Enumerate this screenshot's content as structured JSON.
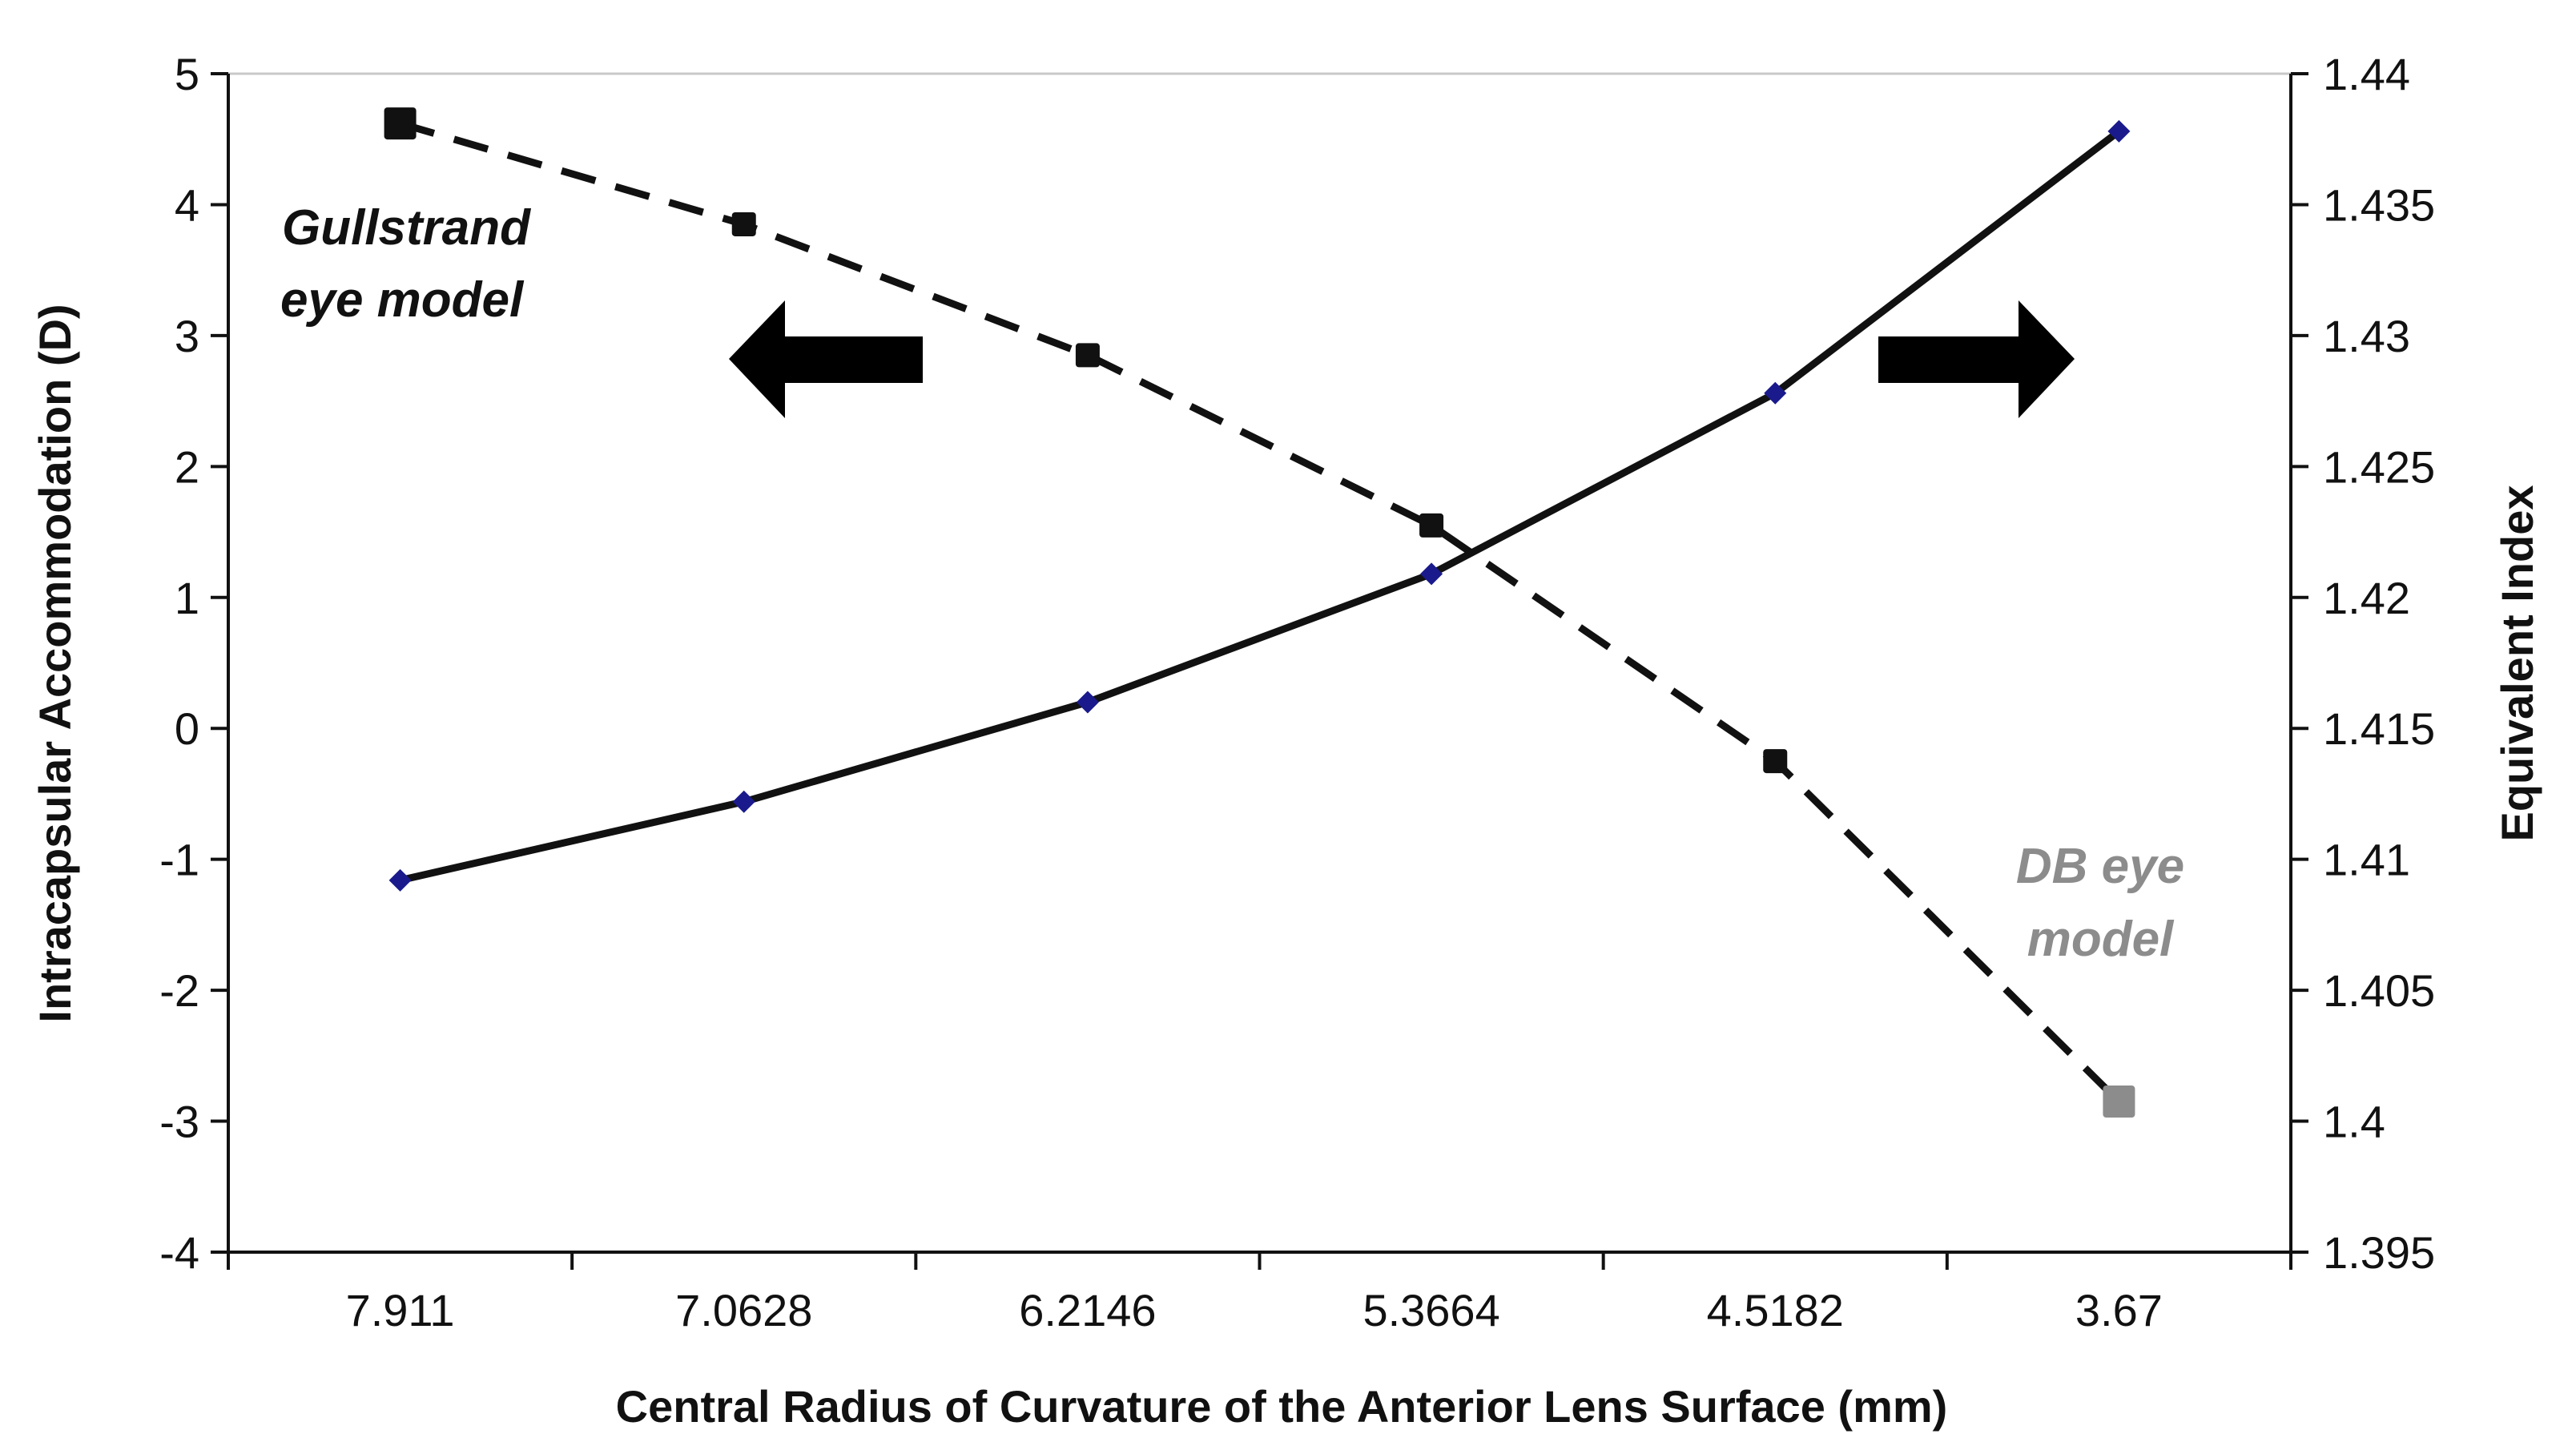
{
  "chart_data": {
    "type": "line",
    "x_label": "Central Radius of Curvature of the Anterior Lens Surface (mm)",
    "y_label_left": "Intracapsular Accommodation (D)",
    "y_label_right": "Equivalent Index",
    "categories": [
      "7.911",
      "7.0628",
      "6.2146",
      "5.3664",
      "4.5182",
      "3.67"
    ],
    "y_left_ticks": [
      "5",
      "4",
      "3",
      "2",
      "1",
      "0",
      "-1",
      "-2",
      "-3",
      "-4"
    ],
    "y_right_ticks": [
      "1.44",
      "1.435",
      "1.43",
      "1.425",
      "1.42",
      "1.415",
      "1.41",
      "1.405",
      "1.4",
      "1.395"
    ],
    "ylim_left": [
      -4,
      5
    ],
    "ylim_right": [
      1.395,
      1.44
    ],
    "series": [
      {
        "axis": "left",
        "style": "dashed",
        "marker": "square",
        "color": "#111111",
        "values": [
          4.62,
          3.85,
          2.85,
          1.55,
          -0.25,
          -2.85
        ]
      },
      {
        "axis": "right",
        "style": "solid",
        "marker": "diamond",
        "color": "#111111",
        "marker_color": "#1a1a8c",
        "values": [
          1.4092,
          1.4122,
          1.416,
          1.4209,
          1.4278,
          1.4378
        ]
      }
    ],
    "annotations": {
      "gullstrand_line1": "Gullstrand",
      "gullstrand_line2": "eye model",
      "db_line1": "DB eye",
      "db_line2": "model"
    },
    "annotation_colors": {
      "gullstrand": "#111111",
      "db": "#8c8c8c"
    },
    "arrows": [
      {
        "name": "left-axis-arrow",
        "direction": "left"
      },
      {
        "name": "right-axis-arrow",
        "direction": "right"
      }
    ],
    "grid": false
  }
}
